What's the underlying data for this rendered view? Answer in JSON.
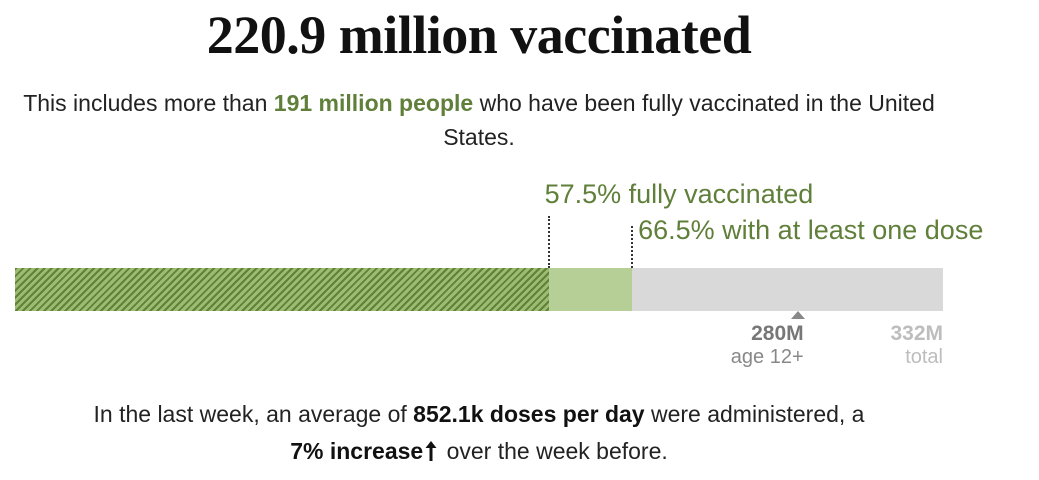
{
  "headline": "220.9 million vaccinated",
  "subline": {
    "pre": "This includes more than ",
    "highlight": "191 million people",
    "post": " who have been fully vaccinated in the United States."
  },
  "footer": {
    "pre": "In the last week, an average of ",
    "doses": "852.1k doses per day",
    "mid": " were administered, a ",
    "increase": "7% increase",
    "post": " over the week before.",
    "arrow_icon": "up-arrow-icon"
  },
  "colors": {
    "fully": "#7f9f52",
    "one_dose": "#b6cf97",
    "remaining": "#d9d9d9",
    "highlight_text": "#5f7f3a"
  },
  "chart_data": {
    "type": "bar",
    "orientation": "horizontal-stacked",
    "unit": "people (millions)",
    "total": 332,
    "series": [
      {
        "name": "57.5% fully vaccinated",
        "percent": 57.5
      },
      {
        "name": "66.5% with at least one dose",
        "percent": 66.5
      }
    ],
    "ticks": [
      {
        "value": 280,
        "label": "280M",
        "sublabel": "age 12+"
      },
      {
        "value": 332,
        "label": "332M",
        "sublabel": "total"
      }
    ]
  }
}
